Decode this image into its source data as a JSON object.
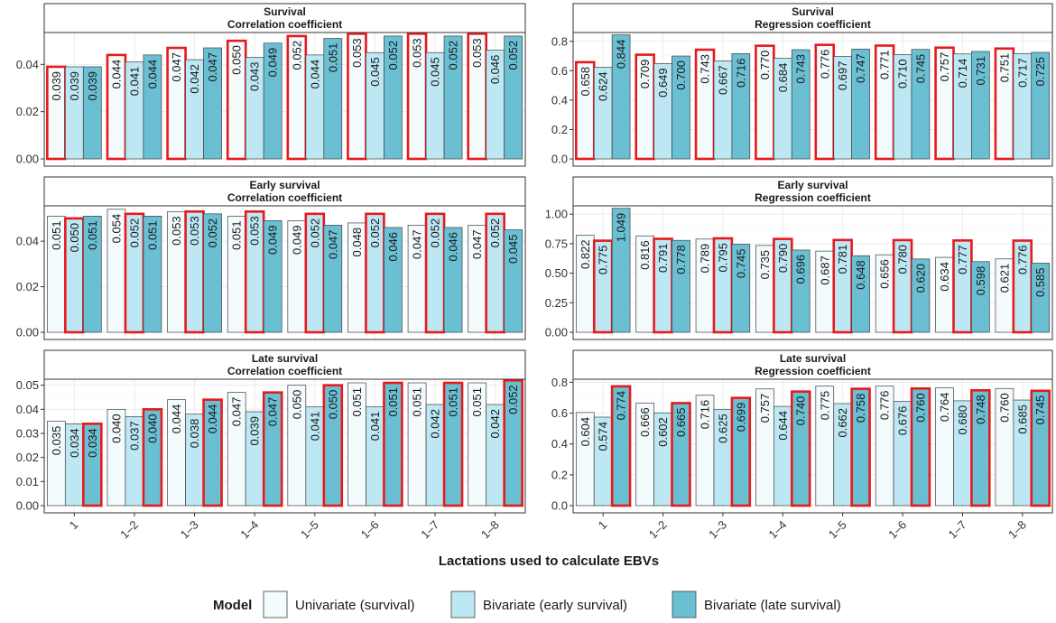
{
  "x_axis_title": "Lactations used to calculate EBVs",
  "legend": {
    "title": "Model",
    "entries": [
      {
        "label": "Univariate (survival)",
        "color": "#f4fbfd"
      },
      {
        "label": "Bivariate (early survival)",
        "color": "#bde8f3"
      },
      {
        "label": "Bivariate (late survival)",
        "color": "#6bbfd3"
      }
    ]
  },
  "highlight_color": "#e8191c",
  "chart_data": [
    {
      "type": "bar",
      "title": "Survival",
      "subtitle": "Correlation coefficient",
      "categories": [
        "1",
        "1–2",
        "1–3",
        "1–4",
        "1–5",
        "1–6",
        "1–7",
        "1–8"
      ],
      "ylim": [
        0,
        0.0535
      ],
      "yticks": [
        "0.00",
        "0.02",
        "0.04"
      ],
      "series": [
        {
          "name": "Univariate (survival)",
          "values": [
            0.039,
            0.044,
            0.047,
            0.05,
            0.052,
            0.053,
            0.053,
            0.053
          ],
          "labels": [
            "0.039",
            "0.044",
            "0.047",
            "0.050",
            "0.052",
            "0.053",
            "0.053",
            "0.053"
          ]
        },
        {
          "name": "Bivariate (early survival)",
          "values": [
            0.039,
            0.041,
            0.042,
            0.043,
            0.044,
            0.045,
            0.045,
            0.046
          ],
          "labels": [
            "0.039",
            "0.041",
            "0.042",
            "0.043",
            "0.044",
            "0.045",
            "0.045",
            "0.046"
          ]
        },
        {
          "name": "Bivariate (late survival)",
          "values": [
            0.039,
            0.044,
            0.047,
            0.049,
            0.051,
            0.052,
            0.052,
            0.052
          ],
          "labels": [
            "0.039",
            "0.044",
            "0.047",
            "0.049",
            "0.051",
            "0.052",
            "0.052",
            "0.052"
          ]
        }
      ],
      "highlighted_series": 0,
      "grid": true
    },
    {
      "type": "bar",
      "title": "Survival",
      "subtitle": "Regression coefficient",
      "categories": [
        "1",
        "1–2",
        "1–3",
        "1–4",
        "1–5",
        "1–6",
        "1–7",
        "1–8"
      ],
      "ylim": [
        0,
        0.86
      ],
      "yticks": [
        "0.0",
        "0.2",
        "0.4",
        "0.6",
        "0.8"
      ],
      "series": [
        {
          "name": "Univariate (survival)",
          "values": [
            0.658,
            0.709,
            0.743,
            0.77,
            0.776,
            0.771,
            0.757,
            0.751
          ],
          "labels": [
            "0.658",
            "0.709",
            "0.743",
            "0.770",
            "0.776",
            "0.771",
            "0.757",
            "0.751"
          ]
        },
        {
          "name": "Bivariate (early survival)",
          "values": [
            0.624,
            0.649,
            0.667,
            0.684,
            0.697,
            0.71,
            0.714,
            0.717
          ],
          "labels": [
            "0.624",
            "0.649",
            "0.667",
            "0.684",
            "0.697",
            "0.710",
            "0.714",
            "0.717"
          ]
        },
        {
          "name": "Bivariate (late survival)",
          "values": [
            0.844,
            0.7,
            0.716,
            0.743,
            0.747,
            0.745,
            0.731,
            0.725
          ],
          "labels": [
            "0.844",
            "0.700",
            "0.716",
            "0.743",
            "0.747",
            "0.745",
            "0.731",
            "0.725"
          ]
        }
      ],
      "highlighted_series": 0,
      "grid": true
    },
    {
      "type": "bar",
      "title": "Early survival",
      "subtitle": "Correlation coefficient",
      "categories": [
        "1",
        "1–2",
        "1–3",
        "1–4",
        "1–5",
        "1–6",
        "1–7",
        "1–8"
      ],
      "ylim": [
        0,
        0.0555
      ],
      "yticks": [
        "0.00",
        "0.02",
        "0.04"
      ],
      "series": [
        {
          "name": "Univariate (survival)",
          "values": [
            0.051,
            0.054,
            0.053,
            0.051,
            0.049,
            0.048,
            0.047,
            0.047
          ],
          "labels": [
            "0.051",
            "0.054",
            "0.053",
            "0.051",
            "0.049",
            "0.048",
            "0.047",
            "0.047"
          ]
        },
        {
          "name": "Bivariate (early survival)",
          "values": [
            0.05,
            0.052,
            0.053,
            0.053,
            0.052,
            0.052,
            0.052,
            0.052
          ],
          "labels": [
            "0.050",
            "0.052",
            "0.053",
            "0.053",
            "0.052",
            "0.052",
            "0.052",
            "0.052"
          ]
        },
        {
          "name": "Bivariate (late survival)",
          "values": [
            0.051,
            0.051,
            0.052,
            0.049,
            0.047,
            0.046,
            0.046,
            0.045
          ],
          "labels": [
            "0.051",
            "0.051",
            "0.052",
            "0.049",
            "0.047",
            "0.046",
            "0.046",
            "0.045"
          ]
        }
      ],
      "highlighted_series": 1,
      "grid": true
    },
    {
      "type": "bar",
      "title": "Early survival",
      "subtitle": "Regression coefficient",
      "categories": [
        "1",
        "1–2",
        "1–3",
        "1–4",
        "1–5",
        "1–6",
        "1–7",
        "1–8"
      ],
      "ylim": [
        0,
        1.07
      ],
      "yticks": [
        "0.00",
        "0.25",
        "0.50",
        "0.75",
        "1.00"
      ],
      "series": [
        {
          "name": "Univariate (survival)",
          "values": [
            0.822,
            0.816,
            0.789,
            0.735,
            0.687,
            0.656,
            0.634,
            0.621
          ],
          "labels": [
            "0.822",
            "0.816",
            "0.789",
            "0.735",
            "0.687",
            "0.656",
            "0.634",
            "0.621"
          ]
        },
        {
          "name": "Bivariate (early survival)",
          "values": [
            0.775,
            0.791,
            0.795,
            0.79,
            0.781,
            0.78,
            0.777,
            0.776
          ],
          "labels": [
            "0.775",
            "0.791",
            "0.795",
            "0.790",
            "0.781",
            "0.780",
            "0.777",
            "0.776"
          ]
        },
        {
          "name": "Bivariate (late survival)",
          "values": [
            1.049,
            0.778,
            0.745,
            0.696,
            0.648,
            0.62,
            0.598,
            0.585
          ],
          "labels": [
            "1.049",
            "0.778",
            "0.745",
            "0.696",
            "0.648",
            "0.620",
            "0.598",
            "0.585"
          ]
        }
      ],
      "highlighted_series": 1,
      "grid": true
    },
    {
      "type": "bar",
      "title": "Late survival",
      "subtitle": "Correlation coefficient",
      "categories": [
        "1",
        "1–2",
        "1–3",
        "1–4",
        "1–5",
        "1–6",
        "1–7",
        "1–8"
      ],
      "ylim": [
        0,
        0.0525
      ],
      "yticks": [
        "0.00",
        "0.01",
        "0.02",
        "0.03",
        "0.04",
        "0.05"
      ],
      "series": [
        {
          "name": "Univariate (survival)",
          "values": [
            0.035,
            0.04,
            0.044,
            0.047,
            0.05,
            0.051,
            0.051,
            0.051
          ],
          "labels": [
            "0.035",
            "0.040",
            "0.044",
            "0.047",
            "0.050",
            "0.051",
            "0.051",
            "0.051"
          ]
        },
        {
          "name": "Bivariate (early survival)",
          "values": [
            0.034,
            0.037,
            0.038,
            0.039,
            0.041,
            0.041,
            0.042,
            0.042
          ],
          "labels": [
            "0.034",
            "0.037",
            "0.038",
            "0.039",
            "0.041",
            "0.041",
            "0.042",
            "0.042"
          ]
        },
        {
          "name": "Bivariate (late survival)",
          "values": [
            0.034,
            0.04,
            0.044,
            0.047,
            0.05,
            0.051,
            0.051,
            0.052
          ],
          "labels": [
            "0.034",
            "0.040",
            "0.044",
            "0.047",
            "0.050",
            "0.051",
            "0.051",
            "0.052"
          ]
        }
      ],
      "highlighted_series": 2,
      "grid": true
    },
    {
      "type": "bar",
      "title": "Late survival",
      "subtitle": "Regression coefficient",
      "categories": [
        "1",
        "1–2",
        "1–3",
        "1–4",
        "1–5",
        "1–6",
        "1–7",
        "1–8"
      ],
      "ylim": [
        0,
        0.82
      ],
      "yticks": [
        "0.0",
        "0.2",
        "0.4",
        "0.6",
        "0.8"
      ],
      "series": [
        {
          "name": "Univariate (survival)",
          "values": [
            0.604,
            0.666,
            0.716,
            0.757,
            0.775,
            0.776,
            0.764,
            0.76
          ],
          "labels": [
            "0.604",
            "0.666",
            "0.716",
            "0.757",
            "0.775",
            "0.776",
            "0.764",
            "0.760"
          ]
        },
        {
          "name": "Bivariate (early survival)",
          "values": [
            0.574,
            0.602,
            0.625,
            0.644,
            0.662,
            0.676,
            0.68,
            0.685
          ],
          "labels": [
            "0.574",
            "0.602",
            "0.625",
            "0.644",
            "0.662",
            "0.676",
            "0.680",
            "0.685"
          ]
        },
        {
          "name": "Bivariate (late survival)",
          "values": [
            0.774,
            0.665,
            0.699,
            0.74,
            0.758,
            0.76,
            0.748,
            0.745
          ],
          "labels": [
            "0.774",
            "0.665",
            "0.699",
            "0.740",
            "0.758",
            "0.760",
            "0.748",
            "0.745"
          ]
        }
      ],
      "highlighted_series": 2,
      "grid": true
    }
  ]
}
